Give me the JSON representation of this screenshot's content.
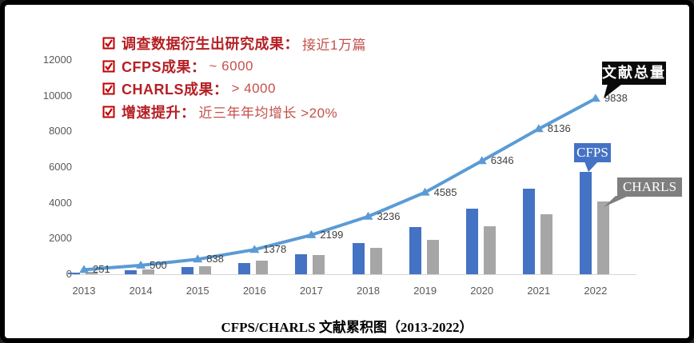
{
  "frame": {
    "background": "#ffffff",
    "border_color": "#000000"
  },
  "annotations": {
    "label_color": "#B52025",
    "value_color": "#C4504B",
    "items": [
      {
        "label": "调查数据衍生出研究成果：",
        "value": "接近1万篇"
      },
      {
        "label": "CFPS成果：",
        "value": "~ 6000"
      },
      {
        "label": "CHARLS成果：",
        "value": "> 4000"
      },
      {
        "label": "增速提升：",
        "value": "近三年年均增长 >20%"
      }
    ]
  },
  "callouts": {
    "total": "文献总量",
    "cfps": "CFPS",
    "charls": "CHARLS",
    "total_bg": "#0A0A0A",
    "cfps_bg": "#4472C4",
    "charls_bg": "#7F7F7F"
  },
  "chart_data": {
    "type": "bar",
    "subtype": "combo bar + line, cumulative counts",
    "title": "CFPS/CHARLS 文献累积图（2013-2022）",
    "categories": [
      "2013",
      "2014",
      "2015",
      "2016",
      "2017",
      "2018",
      "2019",
      "2020",
      "2021",
      "2022"
    ],
    "series": [
      {
        "name": "文献总量",
        "type": "line",
        "color": "#5B9BD5",
        "values": [
          251,
          500,
          838,
          1378,
          2199,
          3236,
          4585,
          6346,
          8136,
          9838
        ],
        "data_labels": true
      },
      {
        "name": "CFPS",
        "type": "bar",
        "color": "#4472C4",
        "values": [
          110,
          230,
          390,
          640,
          1120,
          1760,
          2650,
          3650,
          4800,
          5750
        ],
        "estimated_from_pixels": true
      },
      {
        "name": "CHARLS",
        "type": "bar",
        "color": "#A6A6A6",
        "values": [
          140,
          270,
          450,
          740,
          1080,
          1480,
          1930,
          2700,
          3340,
          4090
        ],
        "estimated_from_pixels": true
      }
    ],
    "xlabel": "",
    "ylabel": "",
    "ylim": [
      0,
      12000
    ],
    "yticks": [
      0,
      2000,
      4000,
      6000,
      8000,
      10000,
      12000
    ],
    "grid": false,
    "legend_position": "callout bubbles on plot"
  }
}
